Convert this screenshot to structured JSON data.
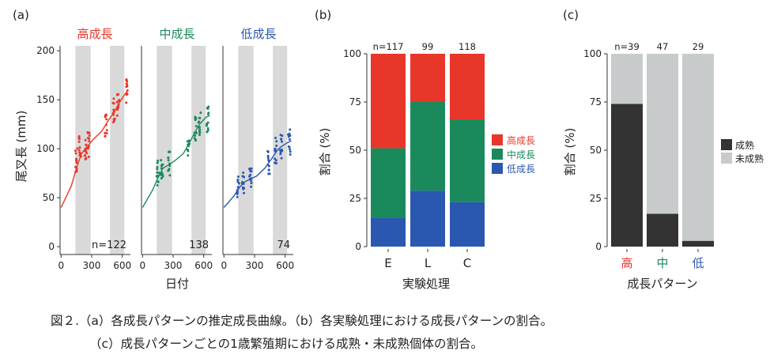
{
  "panel_a": {
    "label": "(a)",
    "ylabel": "尾叉長 (mm)",
    "xlabel": "日付",
    "yticks": [
      "0",
      "50",
      "100",
      "150",
      "200"
    ],
    "xticks": [
      "0",
      "300",
      "600"
    ],
    "panels": [
      {
        "title": "高成長",
        "n_label": "n=122",
        "color": "#e8372a"
      },
      {
        "title": "中成長",
        "n_label": "138",
        "color": "#1a8a5c"
      },
      {
        "title": "低成長",
        "n_label": "74",
        "color": "#2a57b0"
      }
    ]
  },
  "panel_b": {
    "label": "(b)",
    "ylabel": "割合 (%)",
    "xlabel": "実験処理",
    "yticks": [
      "0",
      "25",
      "50",
      "75",
      "100"
    ],
    "legend": [
      "高成長",
      "中成長",
      "低成長"
    ],
    "n_labels": [
      "n=117",
      "99",
      "118"
    ]
  },
  "panel_c": {
    "label": "(c)",
    "ylabel": "割合 (%)",
    "xlabel": "成長パターン",
    "yticks": [
      "0",
      "25",
      "50",
      "75",
      "100"
    ],
    "legend": [
      "成熟",
      "未成熟"
    ],
    "n_labels": [
      "n=39",
      "47",
      "29"
    ]
  },
  "caption": {
    "line1": "図２.（a）各成長パターンの推定成長曲線。（b）各実験処理における成長パターンの割合。",
    "line2": "（c）成長パターンごとの1歳繁殖期における成熟・未成熟個体の割合。"
  },
  "colors": {
    "high": "#e8372a",
    "mid": "#1a8a5c",
    "low": "#2a57b0",
    "mature": "#333333",
    "immature": "#c8cbcc",
    "band": "#d9d9d9"
  },
  "chart_data": [
    {
      "type": "scatter",
      "title": "",
      "xlabel": "日付",
      "ylabel": "尾叉長 (mm)",
      "xlim": [
        -10,
        680
      ],
      "ylim": [
        -8,
        205
      ],
      "shaded_x_ranges": [
        [
          140,
          290
        ],
        [
          480,
          620
        ]
      ],
      "series": [
        {
          "name": "高成長",
          "n": 122,
          "curve": {
            "x": [
              0,
              100,
              150,
              200,
              280,
              320,
              400,
              470,
              520,
              560,
              620,
              660
            ],
            "y": [
              40,
              62,
              80,
              95,
              105,
              110,
              118,
              130,
              137,
              145,
              155,
              160
            ]
          },
          "clusters": [
            {
              "x": 150,
              "y": 88
            },
            {
              "x": 185,
              "y": 100
            },
            {
              "x": 240,
              "y": 100
            },
            {
              "x": 270,
              "y": 104
            },
            {
              "x": 440,
              "y": 125
            },
            {
              "x": 520,
              "y": 140
            },
            {
              "x": 560,
              "y": 145
            },
            {
              "x": 640,
              "y": 158
            }
          ]
        },
        {
          "name": "中成長",
          "n": 138,
          "curve": {
            "x": [
              0,
              100,
              150,
              200,
              280,
              320,
              400,
              470,
              520,
              560,
              620,
              660
            ],
            "y": [
              40,
              58,
              70,
              80,
              85,
              88,
              95,
              108,
              118,
              125,
              132,
              134
            ]
          },
          "clusters": [
            {
              "x": 150,
              "y": 75
            },
            {
              "x": 190,
              "y": 82
            },
            {
              "x": 260,
              "y": 85
            },
            {
              "x": 450,
              "y": 102
            },
            {
              "x": 520,
              "y": 120
            },
            {
              "x": 560,
              "y": 127
            },
            {
              "x": 640,
              "y": 130
            }
          ]
        },
        {
          "name": "低成長",
          "n": 74,
          "curve": {
            "x": [
              0,
              100,
              150,
              200,
              280,
              320,
              400,
              470,
              520,
              560,
              620,
              660
            ],
            "y": [
              40,
              52,
              60,
              66,
              70,
              72,
              80,
              90,
              98,
              102,
              106,
              108
            ]
          },
          "clusters": [
            {
              "x": 140,
              "y": 60
            },
            {
              "x": 190,
              "y": 66
            },
            {
              "x": 260,
              "y": 72
            },
            {
              "x": 440,
              "y": 85
            },
            {
              "x": 510,
              "y": 98
            },
            {
              "x": 560,
              "y": 103
            },
            {
              "x": 640,
              "y": 107
            }
          ]
        }
      ]
    },
    {
      "type": "bar",
      "stacked": true,
      "xlabel": "実験処理",
      "ylabel": "割合 (%)",
      "ylim": [
        0,
        100
      ],
      "categories": [
        "E",
        "L",
        "C"
      ],
      "n": [
        117,
        99,
        118
      ],
      "legend_placement": "right",
      "series": [
        {
          "name": "低成長",
          "values": [
            15,
            29,
            23
          ]
        },
        {
          "name": "中成長",
          "values": [
            36,
            46,
            43
          ]
        },
        {
          "name": "高成長",
          "values": [
            49,
            25,
            34
          ]
        }
      ]
    },
    {
      "type": "bar",
      "stacked": true,
      "xlabel": "成長パターン",
      "ylabel": "割合 (%)",
      "ylim": [
        0,
        100
      ],
      "categories": [
        "高",
        "中",
        "低"
      ],
      "n": [
        39,
        47,
        29
      ],
      "legend_placement": "right",
      "series": [
        {
          "name": "成熟",
          "values": [
            74,
            17,
            3
          ]
        },
        {
          "name": "未成熟",
          "values": [
            26,
            83,
            97
          ]
        }
      ]
    }
  ]
}
